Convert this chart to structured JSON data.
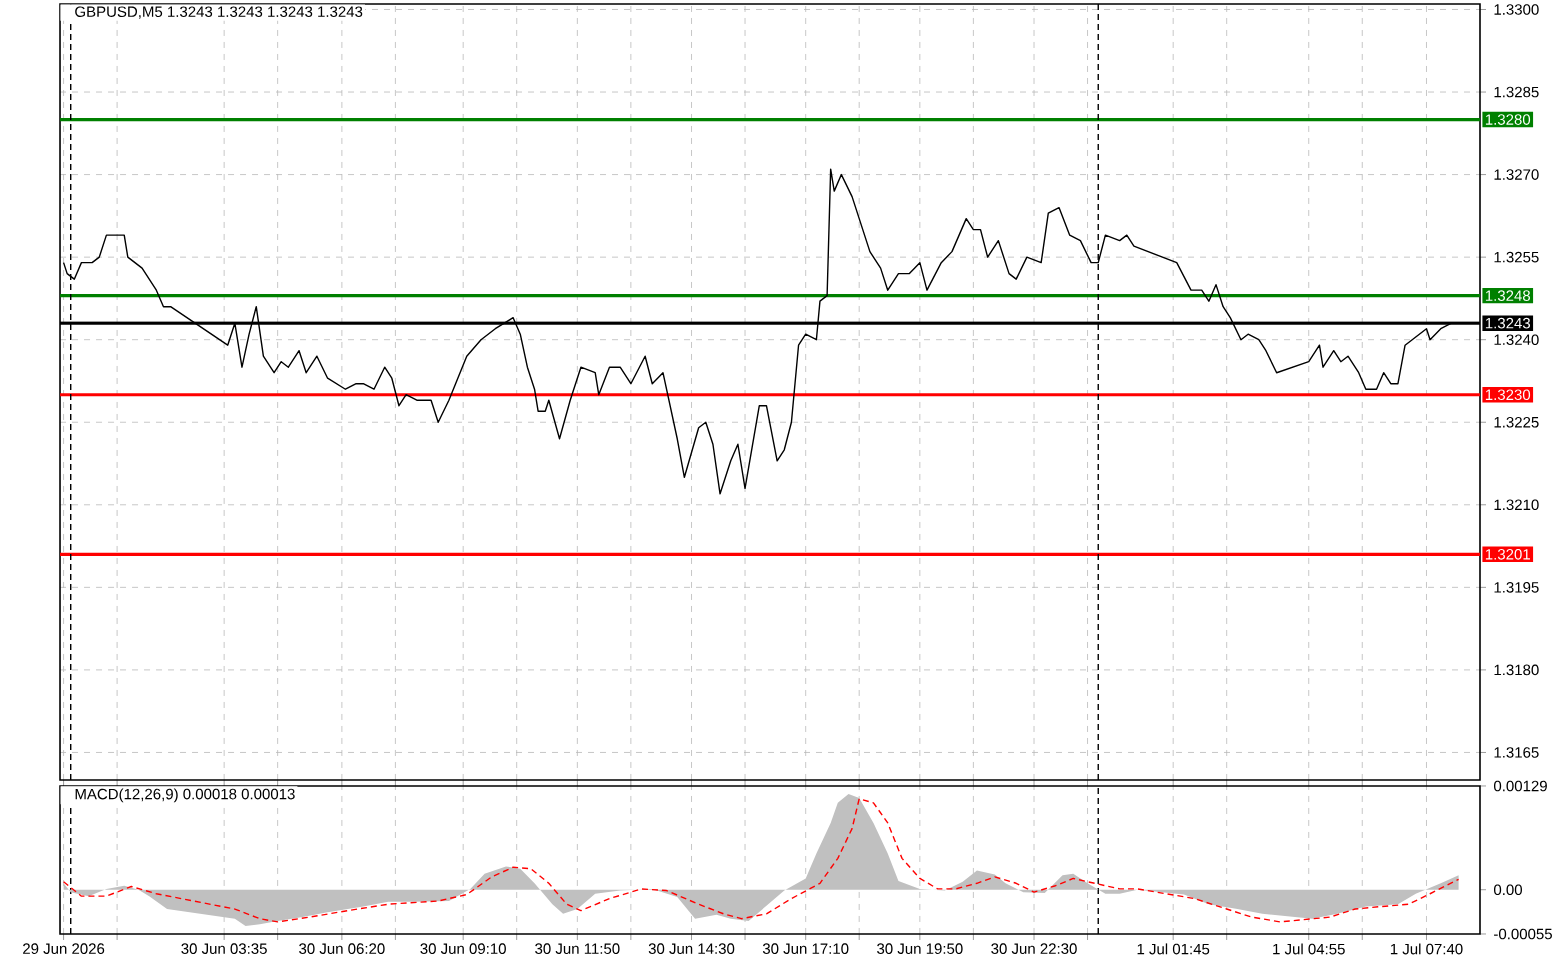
{
  "chart_data": [
    {
      "type": "line",
      "title": "GBPUSD,M5  1.3243 1.3243 1.3243 1.3243",
      "grid": true,
      "tick_labels": "y",
      "xlim": [
        "2026-06-29T23:45",
        "2026-07-01T08:55"
      ],
      "ylim": [
        1.316,
        1.3301
      ],
      "yticks": [
        {
          "value": 1.3165,
          "label": "1.3165"
        },
        {
          "value": 1.318,
          "label": "1.3180"
        },
        {
          "value": 1.3195,
          "label": "1.3195"
        },
        {
          "value": 1.321,
          "label": "1.3210"
        },
        {
          "value": 1.3225,
          "label": "1.3225"
        },
        {
          "value": 1.324,
          "label": "1.3240"
        },
        {
          "value": 1.3255,
          "label": "1.3255"
        },
        {
          "value": 1.327,
          "label": "1.3270"
        },
        {
          "value": 1.3285,
          "label": "1.3285"
        },
        {
          "value": 1.33,
          "label": "1.3300"
        }
      ],
      "xticks": [
        {
          "value": "2026-06-29T23:50",
          "label": null
        },
        {
          "value": "2026-06-30T01:05",
          "label": null
        },
        {
          "value": "2026-06-30T03:35",
          "label": null
        },
        {
          "value": "2026-06-30T04:50",
          "label": null
        },
        {
          "value": "2026-06-30T06:20",
          "label": null
        },
        {
          "value": "2026-06-30T07:35",
          "label": null
        },
        {
          "value": "2026-06-30T09:10",
          "label": null
        },
        {
          "value": "2026-06-30T10:25",
          "label": null
        },
        {
          "value": "2026-06-30T11:50",
          "label": null
        },
        {
          "value": "2026-06-30T13:05",
          "label": null
        },
        {
          "value": "2026-06-30T14:30",
          "label": null
        },
        {
          "value": "2026-06-30T15:45",
          "label": null
        },
        {
          "value": "2026-06-30T17:10",
          "label": null
        },
        {
          "value": "2026-06-30T18:25",
          "label": null
        },
        {
          "value": "2026-06-30T19:50",
          "label": null
        },
        {
          "value": "2026-06-30T21:05",
          "label": null
        },
        {
          "value": "2026-06-30T22:30",
          "label": null
        },
        {
          "value": "2026-06-30T23:45",
          "label": null
        },
        {
          "value": "2026-07-01T01:45",
          "label": null
        },
        {
          "value": "2026-07-01T03:00",
          "label": null
        },
        {
          "value": "2026-07-01T04:55",
          "label": null
        },
        {
          "value": "2026-07-01T06:10",
          "label": null
        },
        {
          "value": "2026-07-01T07:40",
          "label": null
        }
      ],
      "ref_lines": [
        {
          "axis": "y",
          "value": 1.328,
          "label": "1.3280",
          "color": "#008000"
        },
        {
          "axis": "y",
          "value": 1.3248,
          "label": "1.3248",
          "color": "#008000"
        },
        {
          "axis": "y",
          "value": 1.3243,
          "label": "1.3243",
          "color": "#000000"
        },
        {
          "axis": "y",
          "value": 1.323,
          "label": "1.3230",
          "color": "#ff0000"
        },
        {
          "axis": "y",
          "value": 1.3201,
          "label": "1.3201",
          "color": "#ff0000"
        },
        {
          "axis": "x",
          "value": "2026-06-30T00:00",
          "color": "#000000",
          "line_style": "dashed"
        },
        {
          "axis": "x",
          "value": "2026-07-01T00:00",
          "color": "#000000",
          "line_style": "dashed"
        }
      ],
      "series": [
        {
          "color": "#000000",
          "x": [
            "2026-06-29T23:50",
            "2026-06-29T23:55",
            "2026-06-30T00:05",
            "2026-06-30T00:15",
            "2026-06-30T00:30",
            "2026-06-30T00:40",
            "2026-06-30T00:50",
            "2026-06-30T01:15",
            "2026-06-30T01:20",
            "2026-06-30T01:40",
            "2026-06-30T02:00",
            "2026-06-30T02:10",
            "2026-06-30T02:20",
            "2026-06-30T03:40",
            "2026-06-30T03:50",
            "2026-06-30T04:00",
            "2026-06-30T04:10",
            "2026-06-30T04:20",
            "2026-06-30T04:30",
            "2026-06-30T04:45",
            "2026-06-30T04:55",
            "2026-06-30T05:05",
            "2026-06-30T05:20",
            "2026-06-30T05:30",
            "2026-06-30T05:45",
            "2026-06-30T06:00",
            "2026-06-30T06:25",
            "2026-06-30T06:40",
            "2026-06-30T06:50",
            "2026-06-30T07:05",
            "2026-06-30T07:20",
            "2026-06-30T07:30",
            "2026-06-30T07:40",
            "2026-06-30T07:50",
            "2026-06-30T08:05",
            "2026-06-30T08:25",
            "2026-06-30T08:35",
            "2026-06-30T08:50",
            "2026-06-30T09:15",
            "2026-06-30T09:35",
            "2026-06-30T09:55",
            "2026-06-30T10:20",
            "2026-06-30T10:30",
            "2026-06-30T10:40",
            "2026-06-30T10:50",
            "2026-06-30T10:55",
            "2026-06-30T11:05",
            "2026-06-30T11:10",
            "2026-06-30T11:25",
            "2026-06-30T11:40",
            "2026-06-30T11:55",
            "2026-06-30T12:15",
            "2026-06-30T12:20",
            "2026-06-30T12:35",
            "2026-06-30T12:50",
            "2026-06-30T13:05",
            "2026-06-30T13:25",
            "2026-06-30T13:35",
            "2026-06-30T13:50",
            "2026-06-30T14:00",
            "2026-06-30T14:10",
            "2026-06-30T14:20",
            "2026-06-30T14:40",
            "2026-06-30T14:50",
            "2026-06-30T15:00",
            "2026-06-30T15:10",
            "2026-06-30T15:25",
            "2026-06-30T15:35",
            "2026-06-30T15:45",
            "2026-06-30T16:05",
            "2026-06-30T16:15",
            "2026-06-30T16:30",
            "2026-06-30T16:40",
            "2026-06-30T16:50",
            "2026-06-30T17:00",
            "2026-06-30T17:10",
            "2026-06-30T17:25",
            "2026-06-30T17:30",
            "2026-06-30T17:40",
            "2026-06-30T17:45",
            "2026-06-30T17:50",
            "2026-06-30T18:00",
            "2026-06-30T18:15",
            "2026-06-30T18:30",
            "2026-06-30T18:40",
            "2026-06-30T18:55",
            "2026-06-30T19:05",
            "2026-06-30T19:20",
            "2026-06-30T19:35",
            "2026-06-30T19:50",
            "2026-06-30T20:00",
            "2026-06-30T20:20",
            "2026-06-30T20:35",
            "2026-06-30T20:55",
            "2026-06-30T21:05",
            "2026-06-30T21:15",
            "2026-06-30T21:25",
            "2026-06-30T21:40",
            "2026-06-30T21:55",
            "2026-06-30T22:05",
            "2026-06-30T22:20",
            "2026-06-30T22:40",
            "2026-06-30T22:50",
            "2026-06-30T23:05",
            "2026-06-30T23:20",
            "2026-06-30T23:35",
            "2026-06-30T23:50",
            "2026-07-01T00:00",
            "2026-07-01T00:10",
            "2026-07-01T00:30",
            "2026-07-01T00:40",
            "2026-07-01T00:50",
            "2026-07-01T01:50",
            "2026-07-01T02:10",
            "2026-07-01T02:25",
            "2026-07-01T02:35",
            "2026-07-01T02:45",
            "2026-07-01T02:55",
            "2026-07-01T03:05",
            "2026-07-01T03:20",
            "2026-07-01T03:30",
            "2026-07-01T03:45",
            "2026-07-01T03:55",
            "2026-07-01T04:10",
            "2026-07-01T04:55",
            "2026-07-01T05:10",
            "2026-07-01T05:15",
            "2026-07-01T05:30",
            "2026-07-01T05:40",
            "2026-07-01T05:50",
            "2026-07-01T06:05",
            "2026-07-01T06:15",
            "2026-07-01T06:30",
            "2026-07-01T06:40",
            "2026-07-01T06:50",
            "2026-07-01T07:00",
            "2026-07-01T07:10",
            "2026-07-01T07:20",
            "2026-07-01T07:40",
            "2026-07-01T07:45",
            "2026-07-01T08:00",
            "2026-07-01T08:15"
          ],
          "values": [
            1.3254,
            1.3252,
            1.3251,
            1.3254,
            1.3254,
            1.3255,
            1.3259,
            1.3259,
            1.3255,
            1.3253,
            1.3249,
            1.3246,
            1.3246,
            1.3239,
            1.3243,
            1.3235,
            1.3241,
            1.3246,
            1.3237,
            1.3234,
            1.3236,
            1.3235,
            1.3238,
            1.3234,
            1.3237,
            1.3233,
            1.3231,
            1.3232,
            1.3232,
            1.3231,
            1.3235,
            1.3233,
            1.3228,
            1.323,
            1.3229,
            1.3229,
            1.3225,
            1.3229,
            1.3237,
            1.324,
            1.3242,
            1.3244,
            1.3241,
            1.3235,
            1.3231,
            1.3227,
            1.3227,
            1.3229,
            1.3222,
            1.3229,
            1.3235,
            1.3234,
            1.323,
            1.3235,
            1.3235,
            1.3232,
            1.3237,
            1.3232,
            1.3234,
            1.3228,
            1.3222,
            1.3215,
            1.3224,
            1.3225,
            1.3221,
            1.3212,
            1.3218,
            1.3221,
            1.3213,
            1.3228,
            1.3228,
            1.3218,
            1.322,
            1.3225,
            1.3239,
            1.3241,
            1.324,
            1.3247,
            1.3248,
            1.3271,
            1.3267,
            1.327,
            1.3266,
            1.326,
            1.3256,
            1.3253,
            1.3249,
            1.3252,
            1.3252,
            1.3254,
            1.3249,
            1.3254,
            1.3256,
            1.3262,
            1.326,
            1.326,
            1.3255,
            1.3258,
            1.3252,
            1.3251,
            1.3255,
            1.3254,
            1.3263,
            1.3264,
            1.3259,
            1.3258,
            1.3254,
            1.3254,
            1.3259,
            1.3258,
            1.3259,
            1.3257,
            1.3254,
            1.3249,
            1.3249,
            1.3247,
            1.325,
            1.3246,
            1.3244,
            1.324,
            1.3241,
            1.324,
            1.3238,
            1.3234,
            1.3236,
            1.3239,
            1.3235,
            1.3238,
            1.3236,
            1.3237,
            1.3234,
            1.3231,
            1.3231,
            1.3234,
            1.3232,
            1.3232,
            1.3239,
            1.324,
            1.3242,
            1.324,
            1.3242,
            1.3243
          ]
        }
      ]
    },
    {
      "type": "line",
      "title": "MACD(12,26,9) 0.00018 0.00013",
      "grid": "x",
      "xlim": [
        "2026-06-29T23:45",
        "2026-07-01T08:55"
      ],
      "ylim": [
        -0.00055,
        0.00129
      ],
      "yticks": [
        {
          "value": 0.00129,
          "label": "0.00129"
        },
        {
          "value": 0,
          "label": "0.00"
        },
        {
          "value": -0.00055,
          "label": "-0.00055"
        }
      ],
      "xticks": [
        {
          "value": "2026-06-29T23:50",
          "label": "29 Jun 2026"
        },
        {
          "value": "2026-06-30T01:05",
          "label": null
        },
        {
          "value": "2026-06-30T03:35",
          "label": "30 Jun 03:35"
        },
        {
          "value": "2026-06-30T04:50",
          "label": null
        },
        {
          "value": "2026-06-30T06:20",
          "label": "30 Jun 06:20"
        },
        {
          "value": "2026-06-30T07:35",
          "label": null
        },
        {
          "value": "2026-06-30T09:10",
          "label": "30 Jun 09:10"
        },
        {
          "value": "2026-06-30T10:25",
          "label": null
        },
        {
          "value": "2026-06-30T11:50",
          "label": "30 Jun 11:50"
        },
        {
          "value": "2026-06-30T13:05",
          "label": null
        },
        {
          "value": "2026-06-30T14:30",
          "label": "30 Jun 14:30"
        },
        {
          "value": "2026-06-30T15:45",
          "label": null
        },
        {
          "value": "2026-06-30T17:10",
          "label": "30 Jun 17:10"
        },
        {
          "value": "2026-06-30T18:25",
          "label": null
        },
        {
          "value": "2026-06-30T19:50",
          "label": "30 Jun 19:50"
        },
        {
          "value": "2026-06-30T21:05",
          "label": null
        },
        {
          "value": "2026-06-30T22:30",
          "label": "30 Jun 22:30"
        },
        {
          "value": "2026-06-30T23:45",
          "label": null
        },
        {
          "value": "2026-07-01T01:45",
          "label": "1 Jul 01:45"
        },
        {
          "value": "2026-07-01T03:00",
          "label": null
        },
        {
          "value": "2026-07-01T04:55",
          "label": "1 Jul 04:55"
        },
        {
          "value": "2026-07-01T06:10",
          "label": null
        },
        {
          "value": "2026-07-01T07:40",
          "label": "1 Jul 07:40"
        }
      ],
      "ref_lines": [
        {
          "axis": "x",
          "value": "2026-06-30T00:00",
          "color": "#000000",
          "line_style": "dashed"
        },
        {
          "axis": "x",
          "value": "2026-07-01T00:00",
          "color": "#000000",
          "line_style": "dashed"
        }
      ],
      "series": [
        {
          "type": "area",
          "color": "#c0c0c0",
          "x": [
            "2026-06-29T23:50",
            "2026-06-30T00:00",
            "2026-06-30T00:25",
            "2026-06-30T00:50",
            "2026-06-30T01:15",
            "2026-06-30T01:35",
            "2026-06-30T01:50",
            "2026-06-30T02:15",
            "2026-06-30T03:50",
            "2026-06-30T04:05",
            "2026-06-30T04:25",
            "2026-06-30T04:50",
            "2026-06-30T05:25",
            "2026-06-30T06:00",
            "2026-06-30T06:50",
            "2026-06-30T07:25",
            "2026-06-30T08:00",
            "2026-06-30T08:50",
            "2026-06-30T09:20",
            "2026-06-30T09:40",
            "2026-06-30T10:10",
            "2026-06-30T10:30",
            "2026-06-30T10:50",
            "2026-06-30T11:15",
            "2026-06-30T11:30",
            "2026-06-30T11:50",
            "2026-06-30T12:15",
            "2026-06-30T12:50",
            "2026-06-30T13:35",
            "2026-06-30T14:10",
            "2026-06-30T14:35",
            "2026-06-30T15:05",
            "2026-06-30T15:25",
            "2026-06-30T15:50",
            "2026-06-30T16:15",
            "2026-06-30T16:40",
            "2026-06-30T17:10",
            "2026-06-30T17:25",
            "2026-06-30T17:45",
            "2026-06-30T17:55",
            "2026-06-30T18:10",
            "2026-06-30T18:25",
            "2026-06-30T18:45",
            "2026-06-30T19:05",
            "2026-06-30T19:20",
            "2026-06-30T19:50",
            "2026-06-30T20:25",
            "2026-06-30T20:50",
            "2026-06-30T21:10",
            "2026-06-30T21:35",
            "2026-06-30T21:50",
            "2026-06-30T22:15",
            "2026-06-30T22:45",
            "2026-06-30T23:10",
            "2026-06-30T23:25",
            "2026-06-30T23:45",
            "2026-07-01T00:10",
            "2026-07-01T00:30",
            "2026-07-01T00:55",
            "2026-07-01T02:00",
            "2026-07-01T02:35",
            "2026-07-01T03:15",
            "2026-07-01T03:50",
            "2026-07-01T05:00",
            "2026-07-01T05:35",
            "2026-07-01T06:15",
            "2026-07-01T07:00",
            "2026-07-01T07:25",
            "2026-07-01T08:00",
            "2026-07-01T08:25"
          ],
          "values": [
            8e-05,
            -3e-05,
            -8e-05,
            1e-05,
            5e-05,
            0,
            -8e-05,
            -0.00024,
            -0.00036,
            -0.00045,
            -0.00043,
            -0.00039,
            -0.00034,
            -0.00028,
            -0.00021,
            -0.00015,
            -0.00015,
            -0.00014,
            1e-05,
            0.0002,
            0.00029,
            0.00026,
            8e-05,
            -0.00018,
            -0.0003,
            -0.00024,
            -5e-05,
            -1e-05,
            1e-05,
            -9e-05,
            -0.00036,
            -0.00031,
            -0.00036,
            -0.00039,
            -0.0002,
            -1e-05,
            0.00014,
            0.00045,
            0.00083,
            0.00108,
            0.00119,
            0.00114,
            0.00083,
            0.00045,
            0.00011,
            1e-05,
            -1e-05,
            0.0001,
            0.00024,
            0.00019,
            8e-05,
            -3e-05,
            -4e-05,
            0.00018,
            0.0002,
            8e-05,
            -5e-05,
            -5e-05,
            0,
            -6e-05,
            -0.00018,
            -0.00024,
            -0.0003,
            -0.00036,
            -0.0003,
            -0.00021,
            -0.00018,
            -5e-05,
            8e-05,
            0.00018
          ]
        },
        {
          "type": "line",
          "color": "#ff0000",
          "line_style": "dashed",
          "x": [
            "2026-06-29T23:50",
            "2026-06-30T00:15",
            "2026-06-30T00:50",
            "2026-06-30T01:25",
            "2026-06-30T02:00",
            "2026-06-30T03:50",
            "2026-06-30T04:25",
            "2026-06-30T04:50",
            "2026-06-30T05:35",
            "2026-06-30T06:35",
            "2026-06-30T07:25",
            "2026-06-30T08:35",
            "2026-06-30T09:15",
            "2026-06-30T09:50",
            "2026-06-30T10:20",
            "2026-06-30T10:45",
            "2026-06-30T11:10",
            "2026-06-30T11:35",
            "2026-06-30T11:55",
            "2026-06-30T12:35",
            "2026-06-30T13:20",
            "2026-06-30T13:55",
            "2026-06-30T14:40",
            "2026-06-30T15:15",
            "2026-06-30T15:40",
            "2026-06-30T16:15",
            "2026-06-30T16:50",
            "2026-06-30T17:30",
            "2026-06-30T17:55",
            "2026-06-30T18:15",
            "2026-06-30T18:25",
            "2026-06-30T18:45",
            "2026-06-30T19:05",
            "2026-06-30T19:25",
            "2026-06-30T19:50",
            "2026-06-30T20:15",
            "2026-06-30T20:40",
            "2026-06-30T21:10",
            "2026-06-30T21:35",
            "2026-06-30T22:05",
            "2026-06-30T22:30",
            "2026-06-30T23:00",
            "2026-06-30T23:25",
            "2026-06-30T23:55",
            "2026-07-01T00:30",
            "2026-07-01T00:55",
            "2026-07-01T02:15",
            "2026-07-01T03:00",
            "2026-07-01T03:35",
            "2026-07-01T04:15",
            "2026-07-01T05:25",
            "2026-07-01T06:00",
            "2026-07-01T06:35",
            "2026-07-01T07:15",
            "2026-07-01T07:45",
            "2026-07-01T08:25"
          ],
          "values": [
            0.0001,
            -8e-05,
            -8e-05,
            4e-05,
            -5e-05,
            -0.00024,
            -0.00036,
            -0.0004,
            -0.00034,
            -0.00025,
            -0.00018,
            -0.00014,
            -6e-05,
            0.00016,
            0.00028,
            0.00026,
            8e-05,
            -0.00018,
            -0.00026,
            -0.00011,
            1e-05,
            -1e-05,
            -0.00018,
            -0.0003,
            -0.00036,
            -0.0003,
            -0.00011,
            8e-05,
            0.00039,
            0.00076,
            0.00113,
            0.00108,
            0.00083,
            0.00039,
            0.00014,
            1e-05,
            1e-05,
            8e-05,
            0.00016,
            8e-05,
            -3e-05,
            5e-05,
            0.00014,
            8e-05,
            1e-05,
            1e-05,
            -0.00011,
            -0.00024,
            -0.00034,
            -0.0004,
            -0.00034,
            -0.00024,
            -0.00021,
            -0.00018,
            -5e-05,
            0.00013
          ]
        }
      ]
    }
  ]
}
